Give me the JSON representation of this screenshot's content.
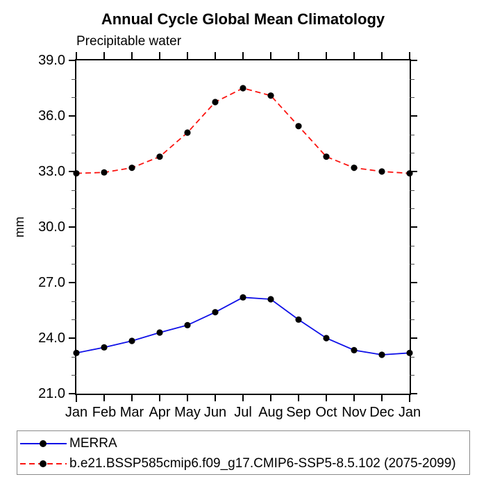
{
  "title": "Annual Cycle Global Mean Climatology",
  "subtitle": "Precipitable water",
  "y_axis_label": "mm",
  "colors": {
    "merra_line": "#0f10e8",
    "model_line": "#fb1410",
    "marker": "#000000",
    "axis": "#000000",
    "minor_tick": "#4d4d4d",
    "legend_border": "#8a8a8a"
  },
  "legend": {
    "items": [
      {
        "label": "MERRA",
        "color": "#0f10e8",
        "style": "solid",
        "marker": "dot"
      },
      {
        "label": "b.e21.BSSP585cmip6.f09_g17.CMIP6-SSP5-8.5.102 (2075-2099)",
        "color": "#fb1410",
        "style": "dashed",
        "marker": "dot"
      }
    ]
  },
  "chart_data": {
    "type": "line",
    "title": "Annual Cycle Global Mean Climatology",
    "subtitle": "Precipitable water",
    "xlabel": "",
    "ylabel": "mm",
    "categories": [
      "Jan",
      "Feb",
      "Mar",
      "Apr",
      "May",
      "Jun",
      "Jul",
      "Aug",
      "Sep",
      "Oct",
      "Nov",
      "Dec",
      "Jan"
    ],
    "series": [
      {
        "name": "MERRA",
        "color": "#0f10e8",
        "line_style": "solid",
        "marker": "circle",
        "marker_color": "#000000",
        "values": [
          23.2,
          23.5,
          23.85,
          24.3,
          24.7,
          25.4,
          26.2,
          26.1,
          25.0,
          24.0,
          23.35,
          23.1,
          23.2
        ]
      },
      {
        "name": "b.e21.BSSP585cmip6.f09_g17.CMIP6-SSP5-8.5.102 (2075-2099)",
        "color": "#fb1410",
        "line_style": "dashed",
        "marker": "circle",
        "marker_color": "#000000",
        "values": [
          32.9,
          32.95,
          33.2,
          33.8,
          35.1,
          36.75,
          37.5,
          37.1,
          35.45,
          33.8,
          33.2,
          33.0,
          32.9
        ]
      }
    ],
    "ylim": [
      21.0,
      39.0
    ],
    "y_major_ticks": [
      21.0,
      24.0,
      27.0,
      30.0,
      33.0,
      36.0,
      39.0
    ],
    "y_tick_labels": [
      "21.0",
      "24.0",
      "27.0",
      "30.0",
      "33.0",
      "36.0",
      "39.0"
    ],
    "y_minor_step": 1.0,
    "grid": false,
    "legend_position": "bottom"
  }
}
